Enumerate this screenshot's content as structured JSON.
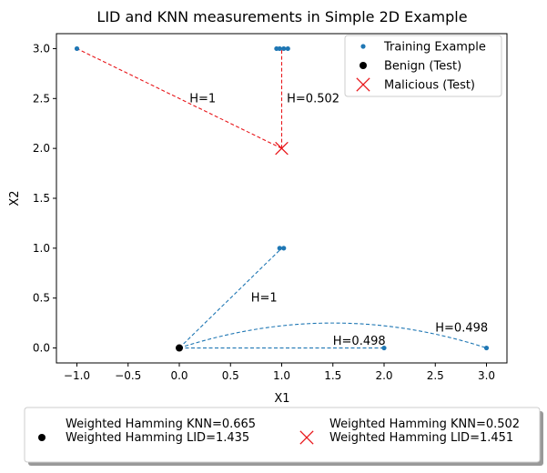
{
  "chart_data": {
    "type": "scatter",
    "title": "LID and KNN measurements in Simple 2D Example",
    "xlabel": "X1",
    "ylabel": "X2",
    "xlim": [
      -1.2,
      3.2
    ],
    "ylim": [
      -0.15,
      3.15
    ],
    "x_ticks": [
      -1.0,
      -0.5,
      0.0,
      0.5,
      1.0,
      1.5,
      2.0,
      2.5,
      3.0
    ],
    "y_ticks": [
      0.0,
      0.5,
      1.0,
      1.5,
      2.0,
      2.5,
      3.0
    ],
    "x_tick_labels": [
      "−1.0",
      "−0.5",
      "0.0",
      "0.5",
      "1.0",
      "1.5",
      "2.0",
      "2.5",
      "3.0"
    ],
    "y_tick_labels": [
      "0.0",
      "0.5",
      "1.0",
      "1.5",
      "2.0",
      "2.5",
      "3.0"
    ],
    "grid": false,
    "legend_position": "top-right",
    "series": [
      {
        "name": "Training Example",
        "marker": "dot",
        "color": "#1f77b4",
        "points": [
          {
            "x": -1.0,
            "y": 3.0
          },
          {
            "x": 0.95,
            "y": 3.0
          },
          {
            "x": 0.98,
            "y": 3.0
          },
          {
            "x": 1.02,
            "y": 3.0
          },
          {
            "x": 1.06,
            "y": 3.0
          },
          {
            "x": 0.98,
            "y": 1.0
          },
          {
            "x": 1.02,
            "y": 1.0
          },
          {
            "x": 2.0,
            "y": 0.0
          },
          {
            "x": 3.0,
            "y": 0.0
          }
        ]
      },
      {
        "name": "Benign (Test)",
        "marker": "circle",
        "color": "#000000",
        "points": [
          {
            "x": 0.0,
            "y": 0.0
          }
        ]
      },
      {
        "name": "Malicious (Test)",
        "marker": "x",
        "color": "#e8161a",
        "points": [
          {
            "x": 1.0,
            "y": 2.0
          }
        ]
      }
    ],
    "connections": [
      {
        "from": [
          0.0,
          0.0
        ],
        "to": [
          1.0,
          1.0
        ],
        "color": "#1f77b4",
        "curve": false
      },
      {
        "from": [
          0.0,
          0.0
        ],
        "to": [
          2.0,
          0.0
        ],
        "color": "#1f77b4",
        "curve": false
      },
      {
        "from": [
          0.0,
          0.0
        ],
        "to": [
          3.0,
          0.0
        ],
        "color": "#1f77b4",
        "curve": true,
        "peak_y": 0.25
      },
      {
        "from": [
          1.0,
          2.0
        ],
        "to": [
          -1.0,
          3.0
        ],
        "color": "#e8161a",
        "curve": false
      },
      {
        "from": [
          1.0,
          2.0
        ],
        "to": [
          1.0,
          3.0
        ],
        "color": "#e8161a",
        "curve": false
      }
    ],
    "annotations": [
      {
        "text": "H=1",
        "x": 0.1,
        "y": 2.5
      },
      {
        "text": "H=0.502",
        "x": 1.05,
        "y": 2.5
      },
      {
        "text": "H=1",
        "x": 0.7,
        "y": 0.5
      },
      {
        "text": "H=0.498",
        "x": 1.5,
        "y": 0.07
      },
      {
        "text": "H=0.498",
        "x": 2.5,
        "y": 0.2
      }
    ],
    "bottom_legend": [
      {
        "marker": "circle",
        "color": "#000000",
        "line1": "Weighted Hamming KNN=0.665",
        "line2": "Weighted Hamming LID=1.435"
      },
      {
        "marker": "x",
        "color": "#e8161a",
        "line1": "Weighted Hamming KNN=0.502",
        "line2": "Weighted Hamming LID=1.451"
      }
    ]
  }
}
